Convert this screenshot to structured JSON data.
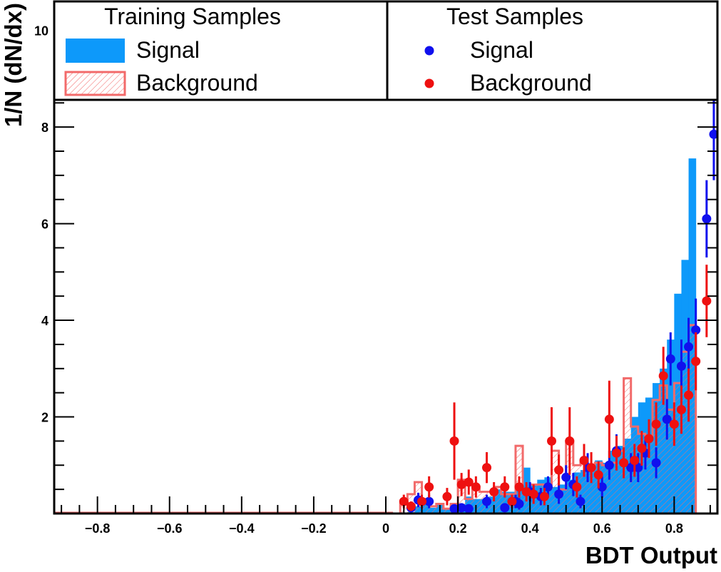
{
  "chart_data": {
    "type": "histogram",
    "xlabel": "BDT Output",
    "ylabel": "1/N (dN/dx)",
    "xlim": [
      -0.92,
      0.92
    ],
    "ylim": [
      0,
      10.6
    ],
    "x_ticks": [
      "−0.8",
      "−0.6",
      "−0.4",
      "−0.2",
      "0",
      "0.2",
      "0.4",
      "0.6",
      "0.8"
    ],
    "x_tick_values": [
      -0.8,
      -0.6,
      -0.4,
      -0.2,
      0,
      0.2,
      0.4,
      0.6,
      0.8
    ],
    "y_ticks": [
      "2",
      "4",
      "6",
      "8",
      "10"
    ],
    "y_tick_values": [
      2,
      4,
      6,
      8,
      10
    ],
    "legend": {
      "training_title": "Training Samples",
      "test_title": "Test Samples",
      "training_signal": "Signal",
      "training_background": "Background",
      "test_signal": "Signal",
      "test_background": "Background"
    },
    "colors": {
      "signal_fill": "#0d99fa",
      "background_line": "#f26a6a",
      "test_signal": "#1010ee",
      "test_background": "#ee1010"
    },
    "bin_start": 0.02,
    "bin_width": 0.02,
    "train_signal": [
      0.02,
      0.02,
      0.03,
      0.15,
      0.2,
      0.12,
      0.18,
      0.1,
      0.1,
      0.15,
      0.35,
      0.3,
      0.3,
      0.35,
      0.5,
      0.45,
      0.45,
      0.6,
      0.95,
      0.6,
      0.7,
      0.75,
      0.55,
      0.6,
      0.7,
      0.85,
      0.9,
      1.0,
      1.1,
      1.05,
      1.3,
      1.4,
      1.55,
      2.0,
      2.3,
      2.4,
      2.7,
      3.0,
      3.6,
      4.55,
      5.25,
      7.35
    ],
    "train_background": [
      0.0,
      0.2,
      0.4,
      0.65,
      0.3,
      0.15,
      0.2,
      0.1,
      0.2,
      0.7,
      0.3,
      0.5,
      0.45,
      0.45,
      0.55,
      0.4,
      0.4,
      1.4,
      0.5,
      0.6,
      0.6,
      0.6,
      1.3,
      0.5,
      1.5,
      1.0,
      1.05,
      1.0,
      1.05,
      1.0,
      1.05,
      1.3,
      2.8,
      1.8,
      1.65,
      1.55,
      2.35,
      2.65,
      2.15,
      2.7,
      3.35,
      3.9
    ],
    "test_signal": [
      {
        "x": 0.07,
        "y": 0.12,
        "e": 0.1
      },
      {
        "x": 0.09,
        "y": 0.28,
        "e": 0.15
      },
      {
        "x": 0.12,
        "y": 0.25,
        "e": 0.14
      },
      {
        "x": 0.19,
        "y": 0.1,
        "e": 0.08
      },
      {
        "x": 0.21,
        "y": 0.12,
        "e": 0.09
      },
      {
        "x": 0.23,
        "y": 0.1,
        "e": 0.08
      },
      {
        "x": 0.28,
        "y": 0.25,
        "e": 0.14
      },
      {
        "x": 0.33,
        "y": 0.12,
        "e": 0.09
      },
      {
        "x": 0.36,
        "y": 0.25,
        "e": 0.14
      },
      {
        "x": 0.37,
        "y": 0.2,
        "e": 0.12
      },
      {
        "x": 0.4,
        "y": 0.45,
        "e": 0.2
      },
      {
        "x": 0.43,
        "y": 0.35,
        "e": 0.18
      },
      {
        "x": 0.45,
        "y": 0.55,
        "e": 0.22
      },
      {
        "x": 0.48,
        "y": 0.4,
        "e": 0.2
      },
      {
        "x": 0.5,
        "y": 0.75,
        "e": 0.25
      },
      {
        "x": 0.52,
        "y": 0.6,
        "e": 0.24
      },
      {
        "x": 0.54,
        "y": 0.25,
        "e": 0.14
      },
      {
        "x": 0.56,
        "y": 0.95,
        "e": 0.3
      },
      {
        "x": 0.6,
        "y": 0.55,
        "e": 0.22
      },
      {
        "x": 0.62,
        "y": 1.0,
        "e": 0.3
      },
      {
        "x": 0.64,
        "y": 1.3,
        "e": 0.34
      },
      {
        "x": 0.68,
        "y": 0.95,
        "e": 0.3
      },
      {
        "x": 0.7,
        "y": 0.95,
        "e": 0.3
      },
      {
        "x": 0.72,
        "y": 1.25,
        "e": 0.34
      },
      {
        "x": 0.75,
        "y": 1.05,
        "e": 0.32
      },
      {
        "x": 0.78,
        "y": 1.95,
        "e": 0.42
      },
      {
        "x": 0.79,
        "y": 3.2,
        "e": 0.55
      },
      {
        "x": 0.82,
        "y": 3.05,
        "e": 0.55
      },
      {
        "x": 0.84,
        "y": 3.45,
        "e": 0.6
      },
      {
        "x": 0.86,
        "y": 3.8,
        "e": 0.65
      },
      {
        "x": 0.89,
        "y": 6.1,
        "e": 0.8
      },
      {
        "x": 0.91,
        "y": 7.85,
        "e": 0.95
      }
    ],
    "test_background": [
      {
        "x": 0.05,
        "y": 0.25,
        "e": 0.14
      },
      {
        "x": 0.07,
        "y": 0.15,
        "e": 0.1
      },
      {
        "x": 0.1,
        "y": 0.25,
        "e": 0.14
      },
      {
        "x": 0.12,
        "y": 0.55,
        "e": 0.22
      },
      {
        "x": 0.17,
        "y": 0.35,
        "e": 0.18
      },
      {
        "x": 0.19,
        "y": 1.5,
        "e": 0.8
      },
      {
        "x": 0.21,
        "y": 0.6,
        "e": 0.24
      },
      {
        "x": 0.23,
        "y": 0.65,
        "e": 0.26
      },
      {
        "x": 0.25,
        "y": 0.55,
        "e": 0.22
      },
      {
        "x": 0.28,
        "y": 0.95,
        "e": 0.32
      },
      {
        "x": 0.3,
        "y": 0.45,
        "e": 0.2
      },
      {
        "x": 0.33,
        "y": 0.55,
        "e": 0.22
      },
      {
        "x": 0.35,
        "y": 0.25,
        "e": 0.14
      },
      {
        "x": 0.37,
        "y": 0.55,
        "e": 0.22
      },
      {
        "x": 0.39,
        "y": 0.45,
        "e": 0.2
      },
      {
        "x": 0.41,
        "y": 0.4,
        "e": 0.2
      },
      {
        "x": 0.44,
        "y": 0.35,
        "e": 0.18
      },
      {
        "x": 0.46,
        "y": 1.5,
        "e": 0.7
      },
      {
        "x": 0.48,
        "y": 0.9,
        "e": 0.32
      },
      {
        "x": 0.51,
        "y": 1.5,
        "e": 0.7
      },
      {
        "x": 0.53,
        "y": 0.55,
        "e": 0.22
      },
      {
        "x": 0.55,
        "y": 1.1,
        "e": 0.34
      },
      {
        "x": 0.57,
        "y": 0.95,
        "e": 0.32
      },
      {
        "x": 0.59,
        "y": 0.8,
        "e": 0.28
      },
      {
        "x": 0.62,
        "y": 1.95,
        "e": 0.8
      },
      {
        "x": 0.64,
        "y": 1.25,
        "e": 0.36
      },
      {
        "x": 0.66,
        "y": 1.05,
        "e": 0.32
      },
      {
        "x": 0.69,
        "y": 1.1,
        "e": 0.34
      },
      {
        "x": 0.71,
        "y": 1.35,
        "e": 0.36
      },
      {
        "x": 0.73,
        "y": 1.55,
        "e": 0.4
      },
      {
        "x": 0.75,
        "y": 1.85,
        "e": 0.45
      },
      {
        "x": 0.77,
        "y": 2.85,
        "e": 0.6
      },
      {
        "x": 0.8,
        "y": 1.85,
        "e": 0.45
      },
      {
        "x": 0.82,
        "y": 2.15,
        "e": 0.5
      },
      {
        "x": 0.84,
        "y": 2.45,
        "e": 0.55
      },
      {
        "x": 0.86,
        "y": 3.15,
        "e": 0.6
      },
      {
        "x": 0.89,
        "y": 4.4,
        "e": 0.75
      }
    ]
  }
}
